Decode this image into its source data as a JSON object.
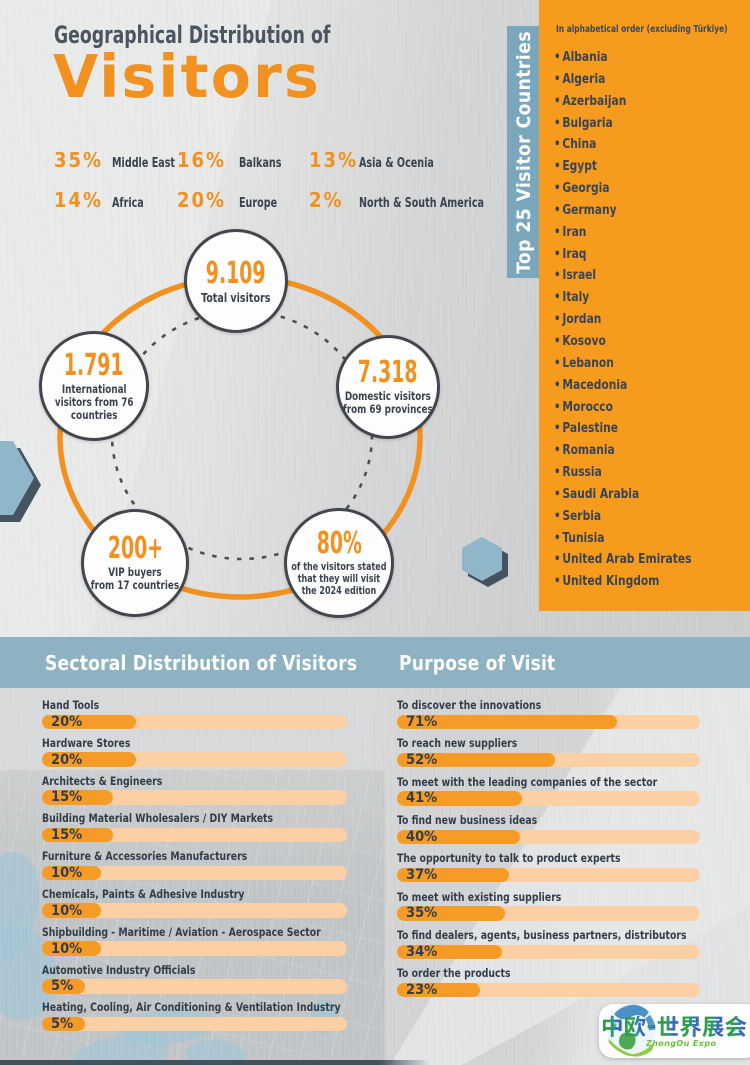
{
  "colors": {
    "accent_orange": "#f29321",
    "panel_orange": "#f79b1f",
    "band_blue": "#8fb2c2",
    "banner_blue": "#7ba7bd",
    "navy_text": "#39434f",
    "track_peach": "#fccfa4",
    "hexagon_blue": "#8fb6c9"
  },
  "header": {
    "title_line": "Geographical Distribution of",
    "title_emphasis": "Visitors"
  },
  "geo_stats": {
    "items": [
      {
        "value": "35%",
        "label": "Middle East"
      },
      {
        "value": "16%",
        "label": "Balkans"
      },
      {
        "value": "13%",
        "label": "Asia & Ocenia"
      },
      {
        "value": "14%",
        "label": "Africa"
      },
      {
        "value": "20%",
        "label": "Europe"
      },
      {
        "value": "2%",
        "label": "North & South America"
      }
    ]
  },
  "visitor_circles": {
    "total": {
      "value": "9.109",
      "caption": "Total visitors"
    },
    "international": {
      "value": "1.791",
      "caption": "International\nvisitors from 76\ncountries"
    },
    "domestic": {
      "value": "7.318",
      "caption": "Domestic visitors\nfrom 69 provinces"
    },
    "vip": {
      "value": "200+",
      "caption": "VIP buyers\nfrom 17 countries"
    },
    "return_intent": {
      "value": "80%",
      "caption": "of the visitors stated\nthat they will visit\nthe 2024 edition"
    }
  },
  "top_countries": {
    "banner": "Top 25 Visitor Countries",
    "note": "In alphabetical order (excluding Türkiye)",
    "items": [
      "Albania",
      "Algeria",
      "Azerbaijan",
      "Bulgaria",
      "China",
      "Egypt",
      "Georgia",
      "Germany",
      "Iran",
      "Iraq",
      "Israel",
      "Italy",
      "Jordan",
      "Kosovo",
      "Lebanon",
      "Macedonia",
      "Morocco",
      "Palestine",
      "Romania",
      "Russia",
      "Saudi Arabia",
      "Serbia",
      "Tunisia",
      "United Arab Emirates",
      "United Kingdom"
    ]
  },
  "sectoral": {
    "title": "Sectoral Distribution of Visitors",
    "bars": [
      {
        "label": "Hand Tools",
        "value": "20%",
        "fill": 30.8
      },
      {
        "label": "Hardware Stores",
        "value": "20%",
        "fill": 30.8
      },
      {
        "label": "Architects & Engineers",
        "value": "15%",
        "fill": 23.3
      },
      {
        "label": "Building Material Wholesalers / DIY Markets",
        "value": "15%",
        "fill": 23.3
      },
      {
        "label": "Furniture & Accessories Manufacturers",
        "value": "10%",
        "fill": 19.2
      },
      {
        "label": "Chemicals, Paints & Adhesive Industry",
        "value": "10%",
        "fill": 19.2
      },
      {
        "label": "Shipbuilding - Maritime / Aviation - Aerospace Sector",
        "value": "10%",
        "fill": 19.2
      },
      {
        "label": "Automotive Industry Officials",
        "value": "5%",
        "fill": 14.2
      },
      {
        "label": "Heating, Cooling, Air Conditioning & Ventilation Industry",
        "value": "5%",
        "fill": 14.2
      }
    ]
  },
  "purpose": {
    "title": "Purpose of Visit",
    "bars": [
      {
        "label": "To discover the innovations",
        "value": "71%",
        "fill": 72.5
      },
      {
        "label": "To reach new suppliers",
        "value": "52%",
        "fill": 52
      },
      {
        "label": "To meet with the leading companies of the sector",
        "value": "41%",
        "fill": 41.3
      },
      {
        "label": "To find new business ideas",
        "value": "40%",
        "fill": 40.5
      },
      {
        "label": "The opportunity to talk to product experts",
        "value": "37%",
        "fill": 37
      },
      {
        "label": "To meet with existing suppliers",
        "value": "35%",
        "fill": 35.6
      },
      {
        "label": "To find dealers, agents, business partners, distributors",
        "value": "34%",
        "fill": 34.6
      },
      {
        "label": "To order the products",
        "value": "23%",
        "fill": 27.5
      }
    ]
  },
  "logo": {
    "title": "中欧-世界展会",
    "subtitle": "ZhongOu Expo"
  },
  "chart_data": [
    {
      "type": "bar",
      "title": "Geographical Distribution of Visitors",
      "categories": [
        "Middle East",
        "Balkans",
        "Asia & Ocenia",
        "Africa",
        "Europe",
        "North & South America"
      ],
      "values": [
        35,
        16,
        13,
        14,
        20,
        2
      ],
      "unit": "%"
    },
    {
      "type": "stat",
      "title": "Visitor totals",
      "items": [
        {
          "label": "Total visitors",
          "value": 9109
        },
        {
          "label": "International visitors (from 76 countries)",
          "value": 1791
        },
        {
          "label": "Domestic visitors (from 69 provinces)",
          "value": 7318
        },
        {
          "label": "VIP buyers (from 17 countries)",
          "value": "200+"
        },
        {
          "label": "Visitors stating they will visit the 2024 edition",
          "value": "80%"
        }
      ]
    },
    {
      "type": "bar",
      "title": "Sectoral Distribution of Visitors",
      "categories": [
        "Hand Tools",
        "Hardware Stores",
        "Architects & Engineers",
        "Building Material Wholesalers / DIY Markets",
        "Furniture & Accessories Manufacturers",
        "Chemicals, Paints & Adhesive Industry",
        "Shipbuilding - Maritime / Aviation - Aerospace Sector",
        "Automotive Industry Officials",
        "Heating, Cooling, Air Conditioning & Ventilation Industry"
      ],
      "values": [
        20,
        20,
        15,
        15,
        10,
        10,
        10,
        5,
        5
      ],
      "unit": "%",
      "xlabel": "",
      "ylabel": "",
      "legend": false
    },
    {
      "type": "bar",
      "title": "Purpose of Visit",
      "categories": [
        "To discover the innovations",
        "To reach new suppliers",
        "To meet with the leading companies of the sector",
        "To find new business ideas",
        "The opportunity to talk to product experts",
        "To meet with existing suppliers",
        "To find dealers, agents, business partners, distributors",
        "To order the products"
      ],
      "values": [
        71,
        52,
        41,
        40,
        37,
        35,
        34,
        23
      ],
      "unit": "%",
      "xlabel": "",
      "ylabel": "",
      "legend": false
    }
  ]
}
